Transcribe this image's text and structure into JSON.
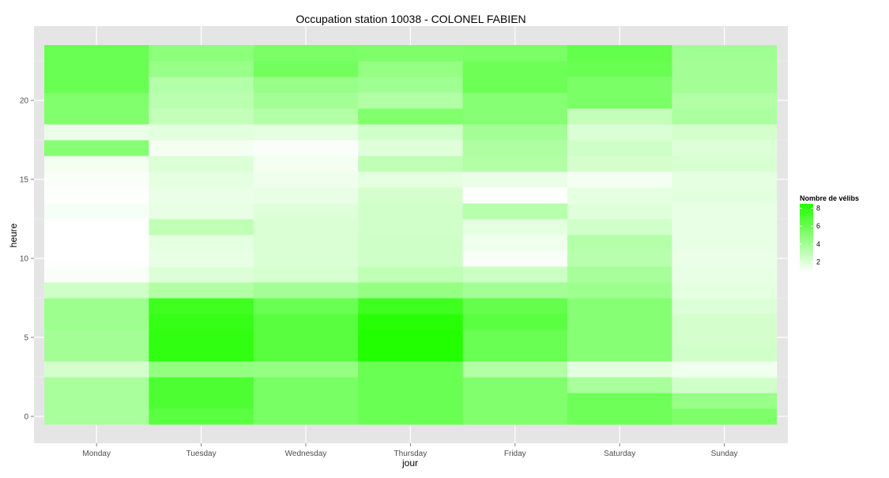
{
  "chart_data": {
    "type": "heatmap",
    "title": "Occupation station 10038 - COLONEL FABIEN",
    "xlabel": "jour",
    "ylabel": "heure",
    "x_categories": [
      "Monday",
      "Tuesday",
      "Wednesday",
      "Thursday",
      "Friday",
      "Saturday",
      "Sunday"
    ],
    "y_values": [
      0,
      1,
      2,
      3,
      4,
      5,
      6,
      7,
      8,
      9,
      10,
      11,
      12,
      13,
      14,
      15,
      16,
      17,
      18,
      19,
      20,
      21,
      22,
      23
    ],
    "y_ticks": [
      0,
      5,
      10,
      15,
      20
    ],
    "ylim": [
      -0.5,
      23.5
    ],
    "grid": true,
    "color_scale": {
      "low_color": "#ffffff",
      "high_color": "#22ff00",
      "min": 0.8,
      "max": 8.5
    },
    "legend": {
      "title": "Nombre de vélibs",
      "ticks": [
        2,
        4,
        6,
        8
      ],
      "position": "right"
    },
    "series": [
      {
        "name": "Monday",
        "values": [
          3.8,
          3.8,
          3.8,
          2.3,
          4.0,
          4.0,
          4.2,
          4.2,
          2.5,
          1.0,
          0.8,
          0.8,
          0.8,
          1.1,
          0.9,
          1.0,
          1.2,
          5.0,
          1.5,
          5.2,
          5.2,
          6.0,
          6.0,
          6.0
        ]
      },
      {
        "name": "Tuesday",
        "values": [
          6.5,
          7.0,
          7.0,
          4.6,
          8.0,
          8.0,
          7.8,
          7.5,
          3.5,
          2.0,
          1.6,
          1.7,
          3.0,
          1.6,
          1.5,
          1.7,
          2.0,
          1.2,
          1.8,
          2.9,
          3.2,
          3.4,
          4.4,
          4.8
        ]
      },
      {
        "name": "Wednesday",
        "values": [
          5.5,
          5.5,
          5.5,
          4.5,
          6.6,
          6.6,
          6.6,
          6.0,
          4.0,
          2.2,
          2.1,
          2.1,
          2.1,
          1.9,
          1.6,
          1.4,
          1.2,
          1.0,
          1.7,
          3.5,
          4.0,
          4.4,
          5.7,
          5.4
        ]
      },
      {
        "name": "Thursday",
        "values": [
          6.0,
          6.0,
          6.0,
          6.0,
          8.5,
          8.5,
          8.3,
          7.5,
          4.5,
          3.0,
          2.5,
          2.5,
          2.4,
          2.4,
          2.3,
          1.7,
          3.0,
          1.9,
          2.4,
          5.2,
          3.5,
          4.1,
          4.5,
          5.3
        ]
      },
      {
        "name": "Friday",
        "values": [
          5.2,
          5.2,
          5.2,
          3.5,
          6.0,
          6.0,
          6.5,
          6.2,
          4.0,
          2.6,
          1.0,
          1.3,
          1.7,
          3.3,
          0.8,
          1.5,
          3.5,
          3.6,
          4.0,
          5.0,
          5.0,
          5.9,
          5.9,
          5.4
        ]
      },
      {
        "name": "Saturday",
        "values": [
          5.8,
          5.8,
          3.8,
          1.8,
          5.0,
          5.0,
          5.0,
          5.0,
          4.2,
          3.9,
          3.3,
          3.4,
          2.4,
          1.9,
          1.7,
          1.2,
          2.3,
          2.5,
          2.1,
          2.9,
          5.4,
          5.4,
          6.0,
          6.2
        ]
      },
      {
        "name": "Sunday",
        "values": [
          5.3,
          4.4,
          2.4,
          1.3,
          2.4,
          2.3,
          2.3,
          2.0,
          1.7,
          1.6,
          1.5,
          1.6,
          1.6,
          1.6,
          1.8,
          1.7,
          2.2,
          2.0,
          2.3,
          3.7,
          3.5,
          4.0,
          4.0,
          4.1
        ]
      }
    ]
  }
}
